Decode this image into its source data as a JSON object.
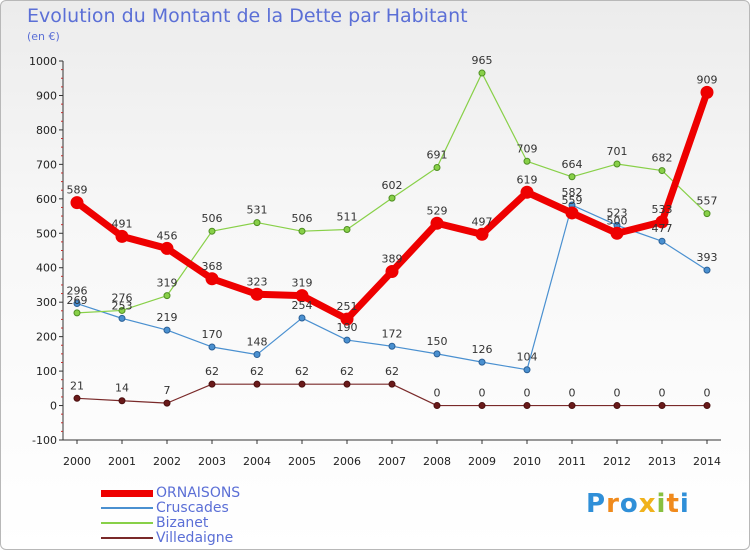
{
  "title": "Evolution du Montant de la Dette par Habitant",
  "subtitle": "(en €)",
  "logo": "Proxiti",
  "chart_data": {
    "type": "line",
    "x": [
      "2000",
      "2001",
      "2002",
      "2003",
      "2004",
      "2005",
      "2006",
      "2007",
      "2008",
      "2009",
      "2010",
      "2011",
      "2012",
      "2013",
      "2014"
    ],
    "ylim": [
      -100,
      1000
    ],
    "yticks": [
      -100,
      0,
      100,
      200,
      300,
      400,
      500,
      600,
      700,
      800,
      900,
      1000
    ],
    "grid": false,
    "legend_position": "bottom-left",
    "series": [
      {
        "name": "ORNAISONS",
        "color": "#ee0000",
        "values": [
          589,
          491,
          456,
          368,
          323,
          319,
          251,
          389,
          529,
          497,
          619,
          559,
          500,
          533,
          909
        ]
      },
      {
        "name": "Cruscades",
        "color": "#4a90d0",
        "values": [
          296,
          253,
          219,
          170,
          148,
          254,
          190,
          172,
          150,
          126,
          104,
          582,
          523,
          477,
          393
        ]
      },
      {
        "name": "Bizanet",
        "color": "#88d048",
        "values": [
          269,
          276,
          319,
          506,
          531,
          506,
          511,
          602,
          691,
          965,
          709,
          664,
          701,
          682,
          557
        ]
      },
      {
        "name": "Villedaigne",
        "color": "#7a2a2a",
        "values": [
          21,
          14,
          7,
          62,
          62,
          62,
          62,
          62,
          0,
          0,
          0,
          0,
          0,
          0,
          0
        ]
      }
    ]
  }
}
